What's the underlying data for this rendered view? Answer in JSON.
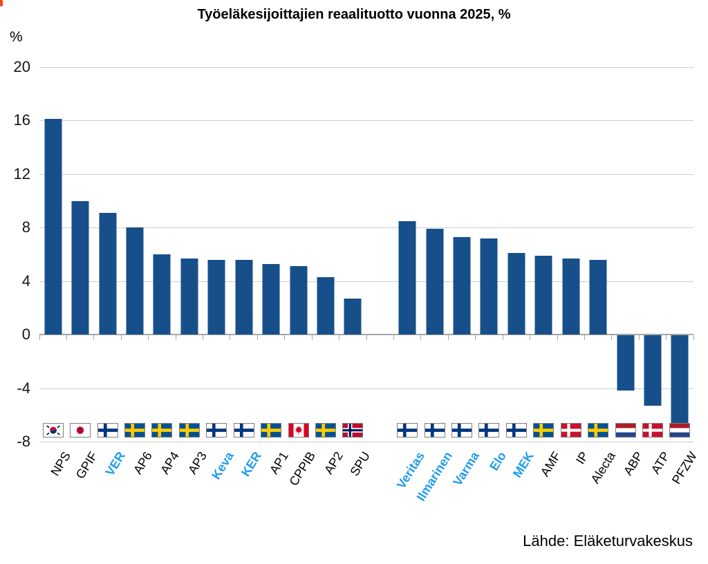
{
  "title": "Työeläkesijoittajien reaalituotto vuonna 2025, %",
  "y_axis_unit": "%",
  "source": "Lähde: Eläketurvakeskus",
  "colors": {
    "bar": "#174F8A",
    "finnish_label": "#1E9BF0",
    "other_label": "#000000",
    "gridline": "#CDCDCD",
    "axis": "#A6A6A6"
  },
  "chart_data": {
    "type": "bar",
    "title": "Työeläkesijoittajien reaalituotto vuonna 2025, %",
    "xlabel": "",
    "ylabel": "%",
    "ylim": [
      -8,
      20
    ],
    "yticks": [
      20,
      16,
      12,
      8,
      4,
      0,
      -4,
      -8
    ],
    "grid": true,
    "legend": "none",
    "groups": [
      {
        "bars": [
          {
            "label": "NPS",
            "country": "KR",
            "value": 16.1,
            "finnish": false
          },
          {
            "label": "GPIF",
            "country": "JP",
            "value": 10.0,
            "finnish": false
          },
          {
            "label": "VER",
            "country": "FI",
            "value": 9.1,
            "finnish": true
          },
          {
            "label": "AP6",
            "country": "SE",
            "value": 8.0,
            "finnish": false
          },
          {
            "label": "AP4",
            "country": "SE",
            "value": 6.0,
            "finnish": false
          },
          {
            "label": "AP3",
            "country": "SE",
            "value": 5.7,
            "finnish": false
          },
          {
            "label": "Keva",
            "country": "FI",
            "value": 5.6,
            "finnish": true
          },
          {
            "label": "KER",
            "country": "FI",
            "value": 5.6,
            "finnish": true
          },
          {
            "label": "AP1",
            "country": "SE",
            "value": 5.3,
            "finnish": false
          },
          {
            "label": "CPPIB",
            "country": "CA",
            "value": 5.1,
            "finnish": false
          },
          {
            "label": "AP2",
            "country": "SE",
            "value": 4.3,
            "finnish": false
          },
          {
            "label": "SPU",
            "country": "NO",
            "value": 2.7,
            "finnish": false
          }
        ]
      },
      {
        "bars": [
          {
            "label": "Veritas",
            "country": "FI",
            "value": 8.5,
            "finnish": true
          },
          {
            "label": "Ilmarinen",
            "country": "FI",
            "value": 7.9,
            "finnish": true
          },
          {
            "label": "Varma",
            "country": "FI",
            "value": 7.3,
            "finnish": true
          },
          {
            "label": "Elo",
            "country": "FI",
            "value": 7.2,
            "finnish": true
          },
          {
            "label": "MEK",
            "country": "FI",
            "value": 6.1,
            "finnish": true
          },
          {
            "label": "AMF",
            "country": "SE",
            "value": 5.9,
            "finnish": false
          },
          {
            "label": "IP",
            "country": "DK",
            "value": 5.7,
            "finnish": false
          },
          {
            "label": "Alecta",
            "country": "SE",
            "value": 5.6,
            "finnish": false
          },
          {
            "label": "ABP",
            "country": "NL",
            "value": -4.2,
            "finnish": false
          },
          {
            "label": "ATP",
            "country": "DK",
            "value": -5.3,
            "finnish": false
          },
          {
            "label": "PFZW",
            "country": "NL",
            "value": -6.6,
            "finnish": false
          }
        ]
      }
    ]
  }
}
